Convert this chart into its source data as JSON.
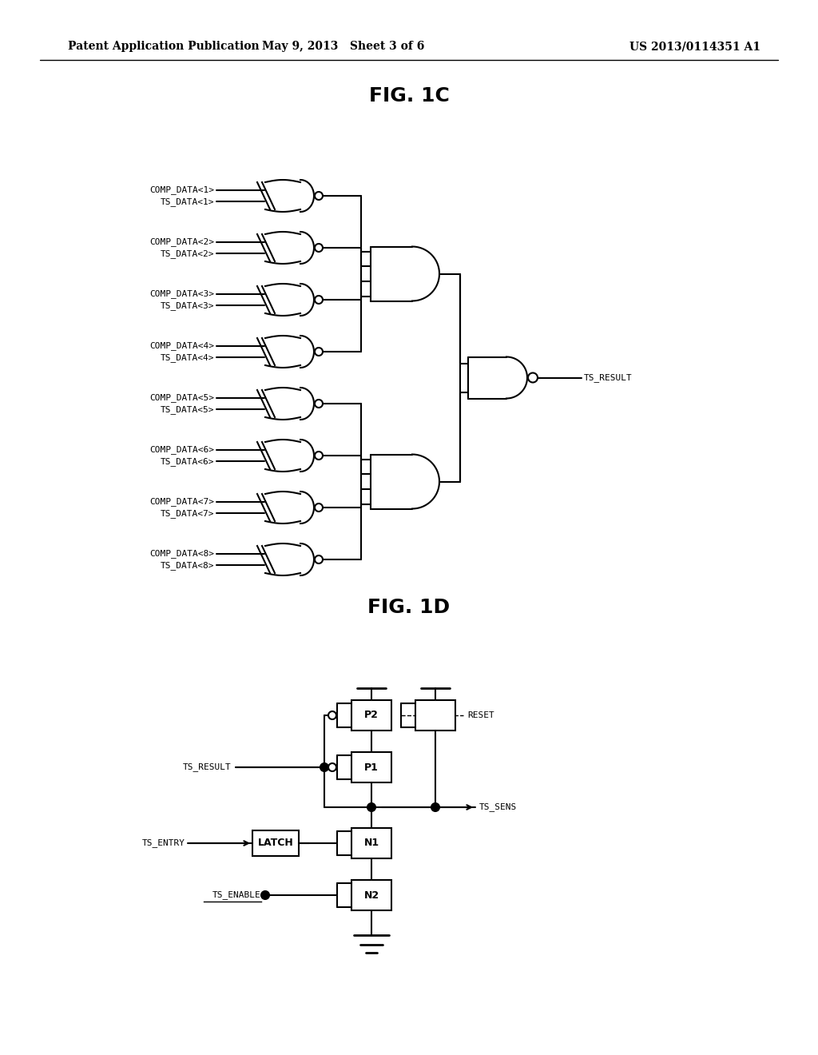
{
  "bg_color": "#ffffff",
  "header_text": "Patent Application Publication",
  "header_date": "May 9, 2013   Sheet 3 of 6",
  "header_patent": "US 2013/0114351 A1",
  "fig1c_title": "FIG. 1C",
  "fig1d_title": "FIG. 1D",
  "xnor_inputs": [
    [
      "COMP_DATA<1>",
      "TS_DATA<1>"
    ],
    [
      "COMP_DATA<2>",
      "TS_DATA<2>"
    ],
    [
      "COMP_DATA<3>",
      "TS_DATA<3>"
    ],
    [
      "COMP_DATA<4>",
      "TS_DATA<4>"
    ],
    [
      "COMP_DATA<5>",
      "TS_DATA<5>"
    ],
    [
      "COMP_DATA<6>",
      "TS_DATA<6>"
    ],
    [
      "COMP_DATA<7>",
      "TS_DATA<7>"
    ],
    [
      "COMP_DATA<8>",
      "TS_DATA<8>"
    ]
  ],
  "ts_result_label": "TS_RESULT",
  "ts_sens_label": "TS_SENS",
  "ts_result_in_label": "TS_RESULT",
  "ts_entry_label": "TS_ENTRY",
  "ts_enable_label": "TS_ENABLE",
  "reset_label": "RESET",
  "latch_label": "LATCH",
  "p1_label": "P1",
  "p2_label": "P2",
  "n1_label": "N1",
  "n2_label": "N2",
  "line_color": "#000000",
  "text_color": "#000000",
  "font_size_header": 10,
  "font_size_fig": 18,
  "font_size_label": 8,
  "font_size_transistor": 8
}
